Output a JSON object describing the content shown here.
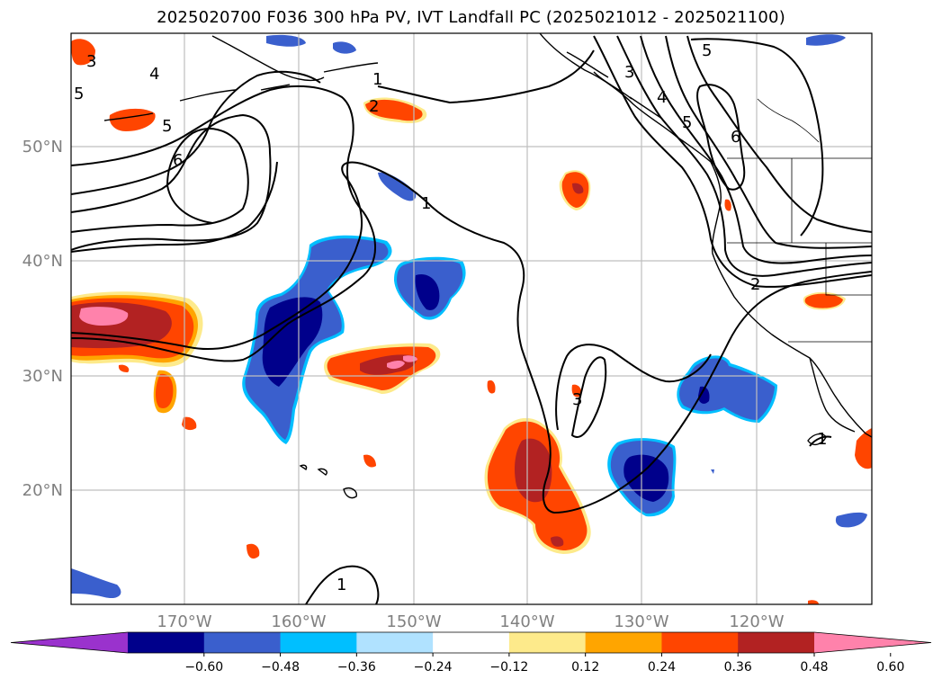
{
  "title": "2025020700 F036 300 hPa PV, IVT Landfall PC (2025021012 - 2025021100)",
  "lat_labels": [
    "50°N",
    "40°N",
    "30°N",
    "20°N"
  ],
  "lon_labels": [
    "170°W",
    "160°W",
    "150°W",
    "140°W",
    "130°W",
    "120°W"
  ],
  "colorbar": {
    "colors": [
      "#9a32cd",
      "#00008b",
      "#3a5fcd",
      "#00bfff",
      "#b0e2ff",
      "#ffffff",
      "#fdea8b",
      "#ffa500",
      "#ff4500",
      "#b22222",
      "#ff82ab"
    ],
    "tick_labels": [
      "−0.60",
      "−0.48",
      "−0.36",
      "−0.24",
      "−0.12",
      "0.12",
      "0.24",
      "0.36",
      "0.48",
      "0.60"
    ]
  },
  "pv_contour_labels": [
    "3",
    "4",
    "5",
    "6",
    "5",
    "1",
    "2",
    "1",
    "3",
    "5",
    "4",
    "5",
    "6",
    "2",
    "1",
    "3",
    "1",
    "5"
  ]
}
